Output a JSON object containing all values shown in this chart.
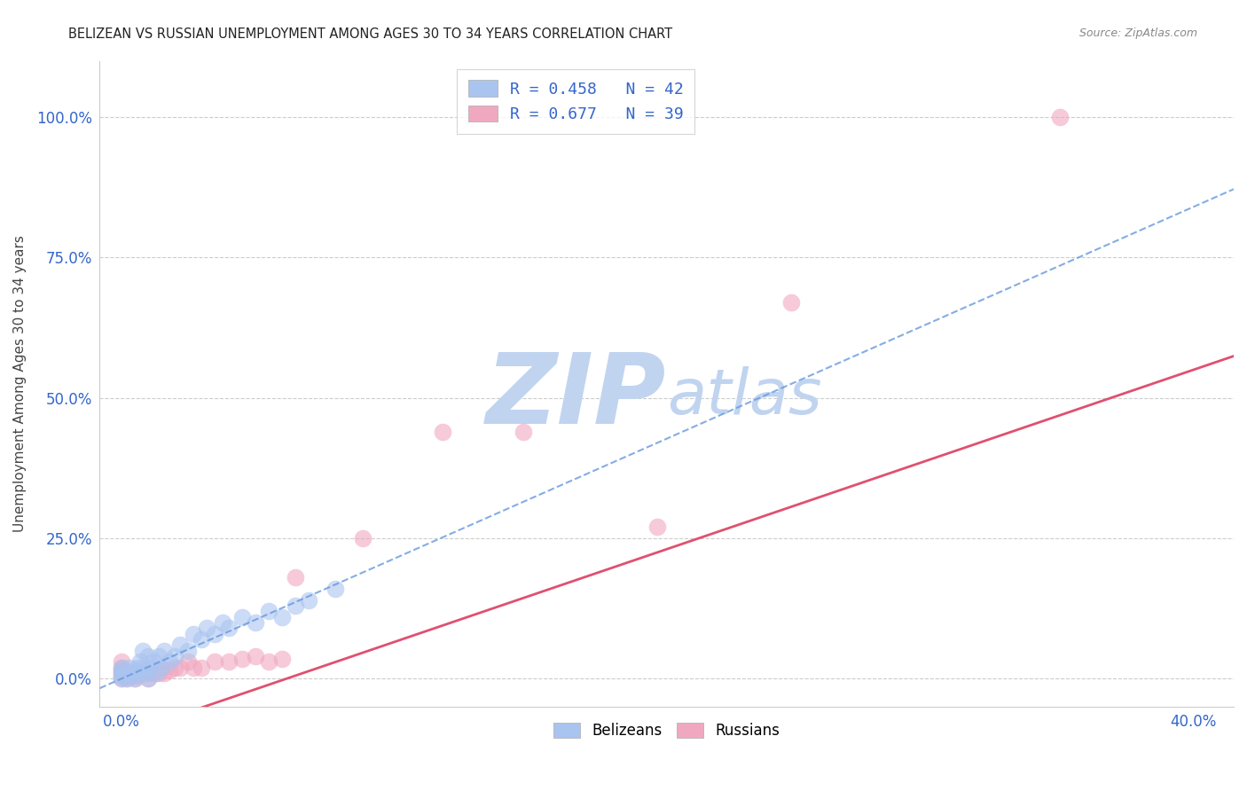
{
  "title": "BELIZEAN VS RUSSIAN UNEMPLOYMENT AMONG AGES 30 TO 34 YEARS CORRELATION CHART",
  "source": "Source: ZipAtlas.com",
  "ylabel": "Unemployment Among Ages 30 to 34 years",
  "xlabel_ticks": [
    "0.0%",
    "40.0%"
  ],
  "xlabel_tick_vals": [
    0.0,
    0.4
  ],
  "ylabel_ticks": [
    "0.0%",
    "25.0%",
    "50.0%",
    "75.0%",
    "100.0%"
  ],
  "ylabel_tick_vals": [
    0.0,
    0.25,
    0.5,
    0.75,
    1.0
  ],
  "xmin": -0.008,
  "xmax": 0.415,
  "ymin": -0.05,
  "ymax": 1.1,
  "belizean_scatter_x": [
    0.0,
    0.0,
    0.0,
    0.0,
    0.0,
    0.002,
    0.003,
    0.003,
    0.004,
    0.005,
    0.005,
    0.006,
    0.007,
    0.007,
    0.008,
    0.008,
    0.009,
    0.01,
    0.01,
    0.01,
    0.012,
    0.013,
    0.014,
    0.015,
    0.016,
    0.018,
    0.02,
    0.022,
    0.025,
    0.027,
    0.03,
    0.032,
    0.035,
    0.038,
    0.04,
    0.045,
    0.05,
    0.055,
    0.06,
    0.065,
    0.07,
    0.08
  ],
  "belizean_scatter_y": [
    0.0,
    0.005,
    0.01,
    0.015,
    0.02,
    0.0,
    0.01,
    0.02,
    0.005,
    0.0,
    0.015,
    0.02,
    0.01,
    0.03,
    0.02,
    0.05,
    0.01,
    0.0,
    0.02,
    0.04,
    0.03,
    0.01,
    0.04,
    0.02,
    0.05,
    0.03,
    0.04,
    0.06,
    0.05,
    0.08,
    0.07,
    0.09,
    0.08,
    0.1,
    0.09,
    0.11,
    0.1,
    0.12,
    0.11,
    0.13,
    0.14,
    0.16
  ],
  "russian_scatter_x": [
    0.0,
    0.0,
    0.0,
    0.0,
    0.0,
    0.0,
    0.002,
    0.003,
    0.004,
    0.005,
    0.005,
    0.006,
    0.007,
    0.008,
    0.01,
    0.01,
    0.012,
    0.014,
    0.015,
    0.016,
    0.018,
    0.02,
    0.022,
    0.025,
    0.027,
    0.03,
    0.035,
    0.04,
    0.045,
    0.05,
    0.055,
    0.06,
    0.065,
    0.09,
    0.12,
    0.15,
    0.2,
    0.25,
    0.35
  ],
  "russian_scatter_y": [
    0.0,
    0.005,
    0.01,
    0.015,
    0.02,
    0.03,
    0.0,
    0.005,
    0.01,
    0.0,
    0.01,
    0.005,
    0.01,
    0.01,
    0.0,
    0.01,
    0.01,
    0.01,
    0.02,
    0.01,
    0.015,
    0.02,
    0.02,
    0.03,
    0.02,
    0.02,
    0.03,
    0.03,
    0.035,
    0.04,
    0.03,
    0.035,
    0.18,
    0.25,
    0.44,
    0.44,
    0.27,
    0.67,
    1.0
  ],
  "belizean_color": "#aac4f0",
  "russian_color": "#f0a8c0",
  "belizean_line_color": "#6699dd",
  "russian_line_color": "#e05070",
  "belizean_trendline_slope": 2.1,
  "belizean_trendline_intercept": 0.0,
  "russian_trendline_slope": 1.625,
  "russian_trendline_intercept": -0.1,
  "watermark_zip_color": "#c0d4f0",
  "watermark_atlas_color": "#c0d4f0",
  "watermark_fontsize": 80,
  "background_color": "#ffffff",
  "grid_color": "#cccccc",
  "legend_label_1": "R = 0.458   N = 42",
  "legend_label_2": "R = 0.677   N = 39",
  "bottom_legend_label_1": "Belizeans",
  "bottom_legend_label_2": "Russians"
}
